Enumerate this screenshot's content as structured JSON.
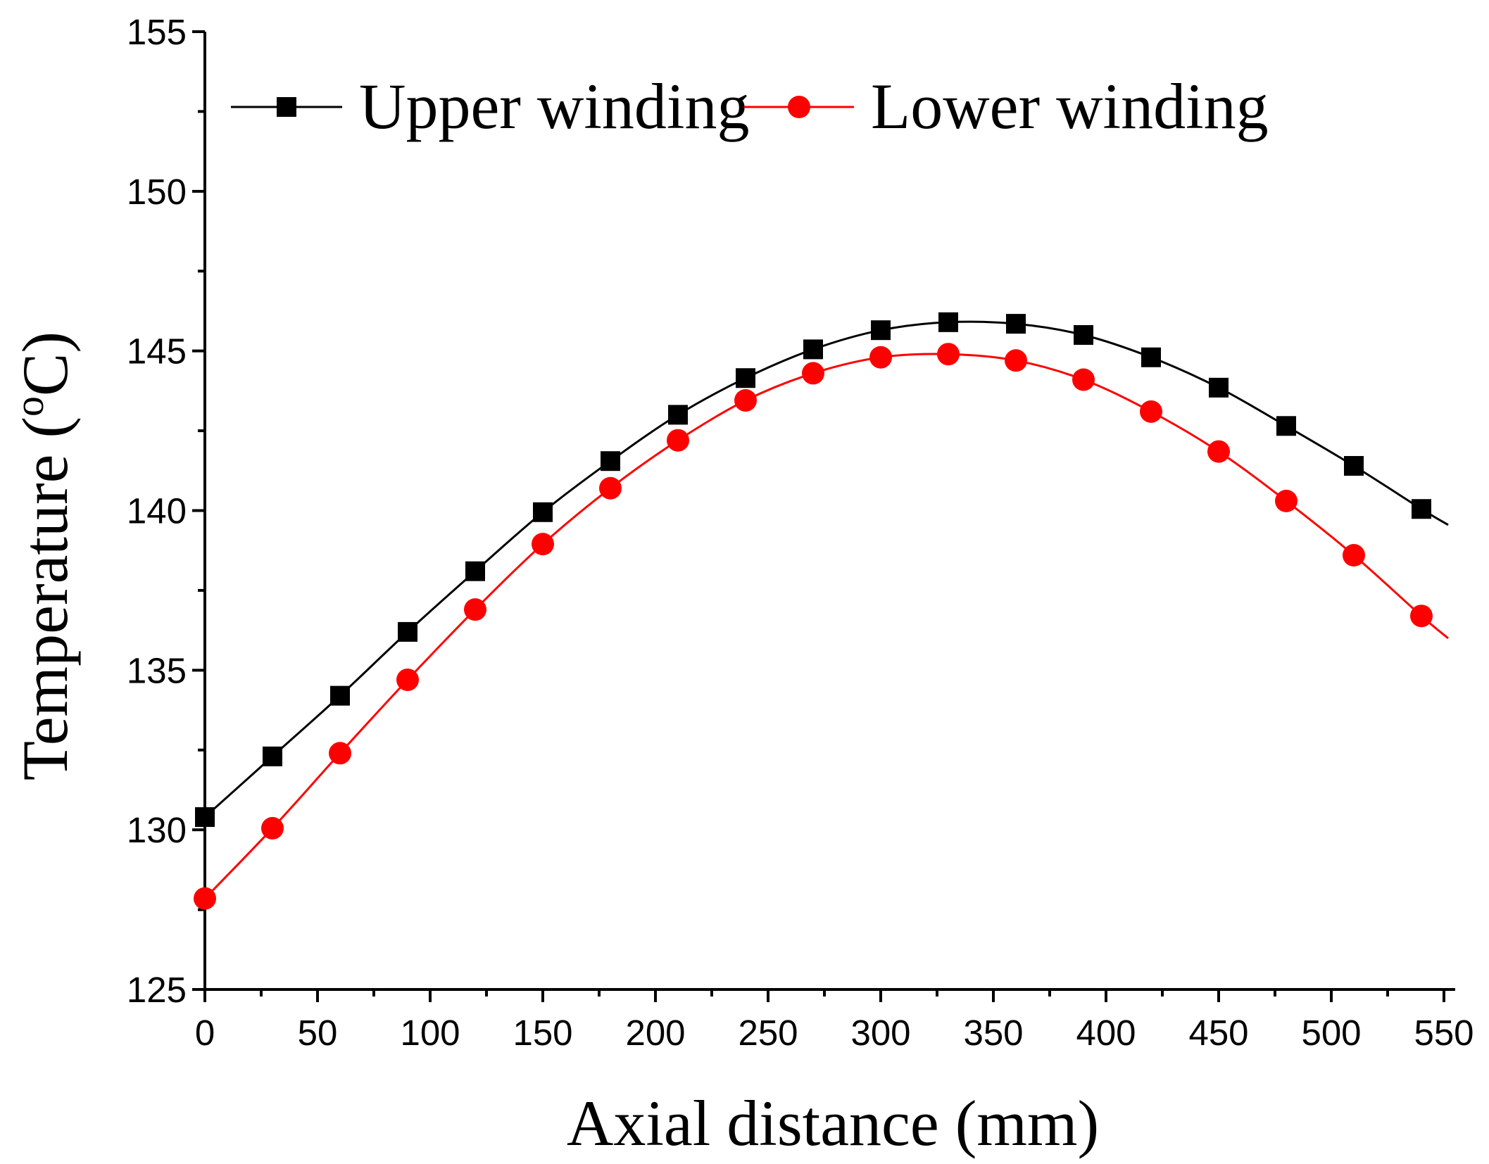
{
  "chart_data": {
    "type": "line",
    "title": "",
    "xlabel": "Axial distance (mm)",
    "ylabel": "Temperature (",
    "ylabel_sup": "o",
    "ylabel_unit": "C)",
    "xlim": [
      0,
      555
    ],
    "ylim": [
      125,
      155
    ],
    "xticks": [
      0,
      50,
      100,
      150,
      200,
      250,
      300,
      350,
      400,
      450,
      500,
      550
    ],
    "yticks": [
      125,
      130,
      135,
      140,
      145,
      150,
      155
    ],
    "grid": false,
    "legend_position": "top",
    "x": [
      0,
      30,
      60,
      90,
      120,
      150,
      180,
      210,
      240,
      270,
      300,
      330,
      360,
      390,
      420,
      450,
      480,
      510,
      540
    ],
    "series": [
      {
        "name": "Upper winding",
        "color": "#000000",
        "marker": "square",
        "values": [
          130.4,
          132.3,
          134.2,
          136.2,
          138.1,
          139.95,
          141.55,
          143.0,
          144.15,
          145.05,
          145.65,
          145.9,
          145.85,
          145.5,
          144.8,
          143.85,
          142.65,
          141.4,
          140.05
        ],
        "curve_end": 139.55
      },
      {
        "name": "Lower winding",
        "color": "#ff0000",
        "marker": "circle",
        "values": [
          127.85,
          130.05,
          132.4,
          134.7,
          136.9,
          138.95,
          140.7,
          142.2,
          143.45,
          144.3,
          144.8,
          144.9,
          144.7,
          144.1,
          143.1,
          141.85,
          140.3,
          138.6,
          136.7
        ],
        "curve_end": 136.0
      }
    ]
  }
}
